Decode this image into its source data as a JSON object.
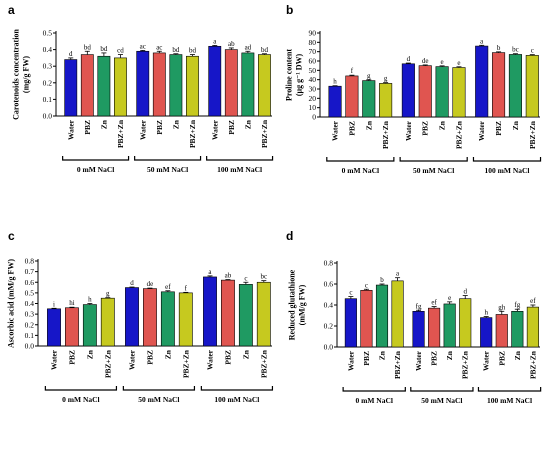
{
  "chart_data": [
    {
      "type": "bar",
      "panel_label": "a",
      "ylabel_lines": [
        "Carotenoids concentration",
        "(mg/g FW)"
      ],
      "ylim": [
        0,
        0.5
      ],
      "yticks": [
        0.0,
        0.1,
        0.2,
        0.3,
        0.4,
        0.5
      ],
      "ytick_labels": [
        "0.0",
        "0.1",
        "0.2",
        "0.3",
        "0.4",
        "0.5"
      ],
      "categories": [
        "Water",
        "PBZ",
        "Zn",
        "PBZ+Zn"
      ],
      "groups": [
        "0 mM NaCl",
        "50 mM NaCl",
        "100 mM NaCl"
      ],
      "values": [
        [
          0.34,
          0.37,
          0.36,
          0.35
        ],
        [
          0.39,
          0.38,
          0.37,
          0.36
        ],
        [
          0.42,
          0.4,
          0.38,
          0.37
        ]
      ],
      "errors": [
        [
          0.01,
          0.02,
          0.02,
          0.02
        ],
        [
          0.005,
          0.01,
          0.005,
          0.01
        ],
        [
          0.005,
          0.01,
          0.01,
          0.005
        ]
      ],
      "letters": [
        [
          "d",
          "bd",
          "bd",
          "cd"
        ],
        [
          "ac",
          "ac",
          "bd",
          "bd"
        ],
        [
          "a",
          "ab",
          "ad",
          "bd"
        ]
      ],
      "grid": false
    },
    {
      "type": "bar",
      "panel_label": "b",
      "ylabel_lines": [
        "Proline content",
        "(µg g⁻¹ DW)"
      ],
      "ylim": [
        0,
        90
      ],
      "yticks": [
        0,
        10,
        20,
        30,
        40,
        50,
        60,
        70,
        80,
        90
      ],
      "ytick_labels": [
        "0",
        "10",
        "20",
        "30",
        "40",
        "50",
        "60",
        "70",
        "80",
        "90"
      ],
      "categories": [
        "Water",
        "PBZ",
        "Zn",
        "PBZ+Zn"
      ],
      "groups": [
        "0 mM NaCl",
        "50 mM NaCl",
        "100 mM NaCl"
      ],
      "values": [
        [
          33,
          44,
          39,
          36
        ],
        [
          57,
          55,
          54,
          53
        ],
        [
          76,
          69,
          67,
          66
        ]
      ],
      "errors": [
        [
          0.5,
          0.8,
          0.8,
          0.8
        ],
        [
          0.8,
          0.8,
          0.8,
          0.8
        ],
        [
          0.8,
          0.8,
          0.8,
          0.8
        ]
      ],
      "letters": [
        [
          "h",
          "f",
          "g",
          "g"
        ],
        [
          "d",
          "de",
          "e",
          "e"
        ],
        [
          "a",
          "b",
          "bc",
          "c"
        ]
      ],
      "grid": false
    },
    {
      "type": "bar",
      "panel_label": "c",
      "ylabel_lines": [
        "Ascorbic acid (mM/g FW)"
      ],
      "ylim": [
        0,
        0.8
      ],
      "yticks": [
        0.0,
        0.1,
        0.2,
        0.3,
        0.4,
        0.5,
        0.6,
        0.7,
        0.8
      ],
      "ytick_labels": [
        "0.0",
        "0.1",
        "0.2",
        "0.3",
        "0.4",
        "0.5",
        "0.6",
        "0.7",
        "0.8"
      ],
      "categories": [
        "Water",
        "PBZ",
        "Zn",
        "PBZ+Zn"
      ],
      "groups": [
        "0 mM NaCl",
        "50 mM NaCl",
        "100 mM NaCl"
      ],
      "values": [
        [
          0.35,
          0.36,
          0.39,
          0.45
        ],
        [
          0.55,
          0.54,
          0.51,
          0.5
        ],
        [
          0.65,
          0.62,
          0.58,
          0.6
        ]
      ],
      "errors": [
        [
          0.005,
          0.005,
          0.01,
          0.005
        ],
        [
          0.005,
          0.005,
          0.01,
          0.005
        ],
        [
          0.01,
          0.005,
          0.02,
          0.015
        ]
      ],
      "letters": [
        [
          "i",
          "hi",
          "h",
          "g"
        ],
        [
          "d",
          "de",
          "ef",
          "f"
        ],
        [
          "a",
          "ab",
          "c",
          "bc"
        ]
      ],
      "grid": false
    },
    {
      "type": "bar",
      "panel_label": "d",
      "ylabel_lines": [
        "Reduced glutathione",
        "(mM/g FW)"
      ],
      "ylim": [
        0,
        0.8
      ],
      "yticks": [
        0.0,
        0.2,
        0.4,
        0.6,
        0.8
      ],
      "ytick_labels": [
        "0.0",
        "0.2",
        "0.4",
        "0.6",
        "0.8"
      ],
      "categories": [
        "Water",
        "PBZ",
        "Zn",
        "PBZ+Zn"
      ],
      "groups": [
        "0 mM NaCl",
        "50 mM NaCl",
        "100 mM NaCl"
      ],
      "values": [
        [
          0.46,
          0.54,
          0.59,
          0.63
        ],
        [
          0.34,
          0.37,
          0.41,
          0.46
        ],
        [
          0.28,
          0.31,
          0.34,
          0.38
        ]
      ],
      "errors": [
        [
          0.02,
          0.01,
          0.01,
          0.03
        ],
        [
          0.01,
          0.015,
          0.02,
          0.03
        ],
        [
          0.01,
          0.03,
          0.02,
          0.02
        ]
      ],
      "letters": [
        [
          "c",
          "c",
          "b",
          "a"
        ],
        [
          "fg",
          "ef",
          "e",
          "d"
        ],
        [
          "h",
          "gh",
          "fg",
          "ef"
        ]
      ],
      "grid": false
    }
  ],
  "colors": {
    "Water": "#1616c8",
    "PBZ": "#e05550",
    "Zn": "#1f9a62",
    "PBZ+Zn": "#c6c91f"
  },
  "bar_label_colors": [
    "#000000",
    "#c00000",
    "#000000",
    "#000000"
  ]
}
